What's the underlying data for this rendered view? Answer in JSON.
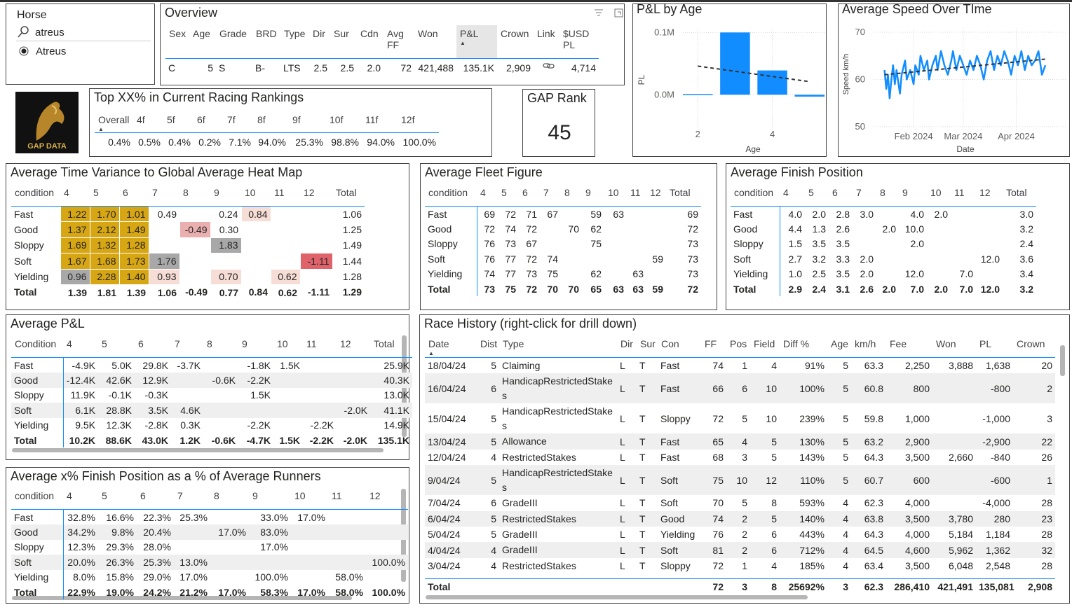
{
  "horse_slicer": {
    "title": "Horse",
    "search": "atreus",
    "option": "Atreus"
  },
  "overview": {
    "title": "Overview",
    "columns": [
      "Sex",
      "Age",
      "Grade",
      "BRD",
      "Type",
      "Dir",
      "Sur",
      "Cdn",
      "Avg FF",
      "Won",
      "P&L",
      "Crown",
      "Link",
      "$USD PL"
    ],
    "rows": [
      [
        "C",
        "5",
        "S",
        "B-",
        "LTS",
        "2.5",
        "2.5",
        "2.0",
        "72",
        "421,488",
        "135.1K",
        "2,909",
        null,
        "4,714"
      ]
    ]
  },
  "pl_by_age": {
    "type": "bar",
    "title": "P&L by Age",
    "x_label": "Age",
    "y_label": "PL",
    "x": [
      2,
      3,
      4,
      5
    ],
    "values": [
      0.001,
      0.1,
      0.039,
      -0.003
    ],
    "color": "#118dff",
    "xlim": [
      1.6,
      5.4
    ],
    "xticks": [
      2,
      4
    ],
    "ylim": [
      -0.057,
      0.106
    ],
    "yticks": [
      {
        "value": 0,
        "label": "0.0M"
      },
      {
        "value": 0.1,
        "label": "0.1M"
      }
    ],
    "grid": true,
    "trend": {
      "x": [
        2,
        5
      ],
      "values": [
        0.046,
        0.021
      ],
      "color": "#333333"
    }
  },
  "speed_over_time": {
    "type": "line",
    "title": "Average Speed Over TIme",
    "x_label": "Date",
    "y_label": "Speed km/h",
    "x": [
      15,
      16,
      17,
      18,
      19,
      20,
      21,
      22,
      24,
      25,
      27,
      28,
      30,
      32,
      33,
      35,
      36,
      38,
      40,
      41,
      43,
      45,
      46,
      48,
      50,
      52,
      54,
      55,
      57,
      59,
      61,
      63,
      65,
      67,
      69,
      71,
      73,
      75,
      77,
      79,
      81,
      83,
      85,
      87,
      89,
      91,
      93,
      95,
      97,
      99,
      101,
      103,
      105,
      107,
      109
    ],
    "values": [
      62,
      58,
      61,
      56,
      60,
      63,
      59,
      62,
      57,
      61,
      64,
      60,
      62,
      59,
      63,
      61,
      65,
      62,
      64,
      60,
      63,
      65,
      62,
      66,
      63,
      61,
      64,
      66,
      62,
      65,
      63,
      61,
      64,
      62,
      65,
      63,
      60,
      64,
      66,
      62,
      65,
      63,
      66,
      64,
      61,
      65,
      63,
      66,
      62,
      65,
      63,
      64,
      66,
      61,
      63
    ],
    "color": "#118dff",
    "xlim": [
      8.6,
      121.3
    ],
    "xticks": [
      {
        "value": 32,
        "label": "Feb 2024"
      },
      {
        "value": 61,
        "label": "Mar 2024"
      },
      {
        "value": 92,
        "label": "Apr 2024"
      }
    ],
    "ylim": [
      48.8,
      70.8
    ],
    "yticks": [
      50,
      60,
      70
    ],
    "grid": true,
    "trend": {
      "x": [
        15,
        109
      ],
      "values": [
        61,
        64.3
      ],
      "color": "#333333"
    }
  },
  "logo_text": "GAP DATA",
  "top_rankings": {
    "title": "Top XX% in Current Racing Rankings",
    "columns": [
      "Overall",
      "4f",
      "5f",
      "6f",
      "7f",
      "8f",
      "9f",
      "10f",
      "11f",
      "12f"
    ],
    "rows": [
      [
        "0.4%",
        "0.5%",
        "0.4%",
        "0.2%",
        "7.1%",
        "94.0%",
        "25.3%",
        "98.8%",
        "94.0%",
        "100.0%"
      ]
    ]
  },
  "gap_rank": {
    "title": "GAP Rank",
    "value": "45"
  },
  "heat_map": {
    "title": "Average Time Variance to Global Average Heat Map",
    "columns": [
      "condition",
      "4",
      "5",
      "6",
      "7",
      "8",
      "9",
      "10",
      "11",
      "12",
      "Total"
    ],
    "rows": [
      [
        "Fast",
        {
          "text": "1.22",
          "color": "#d6a614"
        },
        {
          "text": "1.70",
          "color": "#d6a614"
        },
        {
          "text": "1.01",
          "color": "#d6a614"
        },
        "0.49",
        null,
        "0.24",
        {
          "text": "0.84",
          "color": "#f6ddd6"
        },
        null,
        null,
        "1.06"
      ],
      [
        "Good",
        {
          "text": "1.37",
          "color": "#d6a614"
        },
        {
          "text": "2.12",
          "color": "#d6a614"
        },
        {
          "text": "1.49",
          "color": "#d6a614"
        },
        null,
        {
          "text": "-0.49",
          "color": "#eab0b0"
        },
        "0.30",
        null,
        null,
        null,
        "1.25"
      ],
      [
        "Sloppy",
        {
          "text": "1.69",
          "color": "#d6a614"
        },
        {
          "text": "1.32",
          "color": "#d6a614"
        },
        {
          "text": "1.28",
          "color": "#d6a614"
        },
        null,
        null,
        {
          "text": "1.83",
          "color": "#a8a8a8"
        },
        null,
        null,
        null,
        "1.49"
      ],
      [
        "Soft",
        {
          "text": "1.67",
          "color": "#d6a614"
        },
        {
          "text": "1.68",
          "color": "#d6a614"
        },
        {
          "text": "1.73",
          "color": "#d6a614"
        },
        {
          "text": "1.76",
          "color": "#a8a8a8"
        },
        null,
        null,
        null,
        null,
        {
          "text": "-1.11",
          "color": "#de636b"
        },
        "1.44"
      ],
      [
        "Yielding",
        {
          "text": "0.96",
          "color": "#a8a8a8"
        },
        {
          "text": "2.28",
          "color": "#d6a614"
        },
        {
          "text": "1.40",
          "color": "#d6a614"
        },
        {
          "text": "0.93",
          "color": "#f6ddd6"
        },
        null,
        {
          "text": "0.70",
          "color": "#f6ddd6"
        },
        null,
        {
          "text": "0.62",
          "color": "#f6ddd6"
        },
        null,
        "1.28"
      ]
    ],
    "total": [
      "Total",
      "1.39",
      "1.81",
      "1.39",
      "1.06",
      "-0.49",
      "0.77",
      "0.84",
      "0.62",
      "-1.11",
      "1.29"
    ]
  },
  "fleet_figure": {
    "title": "Average Fleet Figure",
    "columns": [
      "condition",
      "4",
      "5",
      "6",
      "7",
      "8",
      "9",
      "10",
      "11",
      "12",
      "Total"
    ],
    "rows": [
      [
        "Fast",
        "69",
        "72",
        "71",
        "67",
        null,
        "59",
        "63",
        null,
        null,
        "69"
      ],
      [
        "Good",
        "72",
        "74",
        "72",
        null,
        "70",
        "62",
        null,
        null,
        null,
        "72"
      ],
      [
        "Sloppy",
        "76",
        "73",
        "67",
        null,
        null,
        "75",
        null,
        null,
        null,
        "73"
      ],
      [
        "Soft",
        "76",
        "77",
        "72",
        "74",
        null,
        null,
        null,
        null,
        "59",
        "73"
      ],
      [
        "Yielding",
        "74",
        "77",
        "73",
        "75",
        null,
        "62",
        null,
        "63",
        null,
        "73"
      ]
    ],
    "total": [
      "Total",
      "73",
      "75",
      "72",
      "70",
      "70",
      "65",
      "63",
      "63",
      "59",
      "72"
    ]
  },
  "finish_position": {
    "title": "Average Finish Position",
    "columns": [
      "condition",
      "4",
      "5",
      "6",
      "7",
      "8",
      "9",
      "10",
      "11",
      "12",
      "Total"
    ],
    "rows": [
      [
        "Fast",
        "4.0",
        "2.0",
        "2.8",
        "3.0",
        null,
        "4.0",
        "2.0",
        null,
        null,
        "3.0"
      ],
      [
        "Good",
        "4.4",
        "1.3",
        "2.6",
        null,
        "2.0",
        "10.0",
        null,
        null,
        null,
        "3.2"
      ],
      [
        "Sloppy",
        "1.5",
        "3.5",
        "3.5",
        null,
        null,
        "2.0",
        null,
        null,
        null,
        "2.4"
      ],
      [
        "Soft",
        "2.7",
        "3.2",
        "3.3",
        "2.0",
        null,
        null,
        null,
        null,
        "12.0",
        "3.6"
      ],
      [
        "Yielding",
        "1.0",
        "2.5",
        "3.5",
        "2.0",
        null,
        "12.0",
        null,
        "7.0",
        null,
        "3.4"
      ]
    ],
    "total": [
      "Total",
      "2.9",
      "2.4",
      "3.1",
      "2.6",
      "2.0",
      "7.0",
      "2.0",
      "7.0",
      "12.0",
      "3.2"
    ]
  },
  "avg_pl": {
    "title": "Average P&L",
    "columns": [
      "Condition",
      "4",
      "5",
      "6",
      "7",
      "8",
      "9",
      "10",
      "11",
      "12",
      "Total"
    ],
    "rows": [
      [
        "Fast",
        "-4.9K",
        "5.0K",
        "29.8K",
        "-3.7K",
        null,
        "-1.8K",
        "1.5K",
        null,
        null,
        "25.9K"
      ],
      [
        "Good",
        "-12.4K",
        "42.6K",
        "12.9K",
        null,
        "-0.6K",
        "-2.2K",
        null,
        null,
        null,
        "40.3K"
      ],
      [
        "Sloppy",
        "11.9K",
        "-0.1K",
        "-0.3K",
        null,
        null,
        "1.5K",
        null,
        null,
        null,
        "13.0K"
      ],
      [
        "Soft",
        "6.1K",
        "28.8K",
        "3.5K",
        "4.6K",
        null,
        null,
        null,
        null,
        "-2.0K",
        "41.1K"
      ],
      [
        "Yielding",
        "9.5K",
        "12.3K",
        "-2.8K",
        "0.3K",
        null,
        "-2.2K",
        null,
        "-2.2K",
        null,
        "14.9K"
      ]
    ],
    "total": [
      "Total",
      "10.2K",
      "88.6K",
      "43.0K",
      "1.2K",
      "-0.6K",
      "-4.7K",
      "1.5K",
      "-2.2K",
      "-2.0K",
      "135.1K"
    ]
  },
  "avg_finish_pct": {
    "title": "Average x% Finish Position as a % of Average Runners",
    "columns": [
      "condition",
      "4",
      "5",
      "6",
      "7",
      "8",
      "9",
      "10",
      "11",
      "12"
    ],
    "rows": [
      [
        "Fast",
        "32.8%",
        "16.6%",
        "22.3%",
        "25.3%",
        null,
        "33.0%",
        "17.0%",
        null,
        null
      ],
      [
        "Good",
        "34.2%",
        "9.8%",
        "20.4%",
        null,
        "17.0%",
        "83.0%",
        null,
        null,
        null
      ],
      [
        "Sloppy",
        "12.3%",
        "29.3%",
        "28.0%",
        null,
        null,
        "17.0%",
        null,
        null,
        null
      ],
      [
        "Soft",
        "20.0%",
        "26.3%",
        "25.3%",
        "13.0%",
        null,
        null,
        null,
        null,
        "100.0%"
      ],
      [
        "Yielding",
        "8.0%",
        "15.8%",
        "29.0%",
        "17.0%",
        null,
        "100.0%",
        null,
        "58.0%",
        null
      ]
    ],
    "total": [
      "Total",
      "22.9%",
      "19.0%",
      "24.2%",
      "21.2%",
      "17.0%",
      "58.3%",
      "17.0%",
      "58.0%",
      "100.0%"
    ]
  },
  "race_history": {
    "title": "Race History (right-click for drill down)",
    "columns": [
      "Date",
      "Dist",
      "Type",
      "Dir",
      "Sur",
      "Con",
      "FF",
      "Pos",
      "Field",
      "Diff %",
      "Age",
      "km/h",
      "Fee",
      "Won",
      "PL",
      "Crown"
    ],
    "rows": [
      [
        "18/04/24",
        "5",
        "Claiming",
        "L",
        "T",
        "Fast",
        "74",
        "1",
        "4",
        "91%",
        "5",
        "63.3",
        "2,250",
        "3,888",
        "1,638",
        "20"
      ],
      [
        "16/04/24",
        "6",
        "HandicapRestrictedStakes",
        "L",
        "T",
        "Fast",
        "66",
        "6",
        "10",
        "100%",
        "5",
        "60.8",
        "800",
        null,
        "-800",
        "2"
      ],
      [
        "15/04/24",
        "5",
        "HandicapRestrictedStakes",
        "L",
        "T",
        "Sloppy",
        "72",
        "5",
        "10",
        "239%",
        "5",
        "59.8",
        "1,000",
        null,
        "-1,000",
        "3"
      ],
      [
        "13/04/24",
        "5",
        "Allowance",
        "L",
        "T",
        "Fast",
        "65",
        "4",
        "5",
        "130%",
        "5",
        "63.2",
        "2,900",
        null,
        "-2,900",
        "22"
      ],
      [
        "12/04/24",
        "4",
        "RestrictedStakes",
        "L",
        "T",
        "Fast",
        "68",
        "3",
        "5",
        "143%",
        "5",
        "64.3",
        "3,500",
        "2,660",
        "-840",
        "26"
      ],
      [
        "9/04/24",
        "5",
        "HandicapRestrictedStakes",
        "L",
        "T",
        "Soft",
        "75",
        "10",
        "12",
        "110%",
        "5",
        "60.7",
        "600",
        null,
        "-600",
        "1"
      ],
      [
        "7/04/24",
        "6",
        "GradeIII",
        "L",
        "T",
        "Soft",
        "70",
        "5",
        "8",
        "593%",
        "4",
        "62.3",
        "4,000",
        null,
        "-4,000",
        "28"
      ],
      [
        "6/04/24",
        "5",
        "RestrictedStakes",
        "L",
        "T",
        "Good",
        "74",
        "2",
        "5",
        "140%",
        "4",
        "63.8",
        "3,500",
        "3,780",
        "280",
        "23"
      ],
      [
        "5/04/24",
        "5",
        "GradeIII",
        "L",
        "T",
        "Yielding",
        "76",
        "2",
        "6",
        "443%",
        "4",
        "64.3",
        "4,000",
        "5,184",
        "1,184",
        "28"
      ],
      [
        "4/04/24",
        "4",
        "GradeIII",
        "L",
        "T",
        "Soft",
        "81",
        "2",
        "6",
        "712%",
        "4",
        "64.5",
        "4,600",
        "5,962",
        "1,362",
        "32"
      ],
      [
        "3/04/24",
        "4",
        "RestrictedStakes",
        "L",
        "T",
        "Sloppy",
        "72",
        "1",
        "4",
        "185%",
        "4",
        "63.4",
        "3,500",
        "6,048",
        "2,548",
        "28"
      ]
    ],
    "total": [
      "Total",
      null,
      null,
      null,
      null,
      null,
      "72",
      "3",
      "8",
      "25692%",
      "3",
      "62.3",
      "286,410",
      "421,491",
      "135,081",
      "2,908"
    ]
  }
}
